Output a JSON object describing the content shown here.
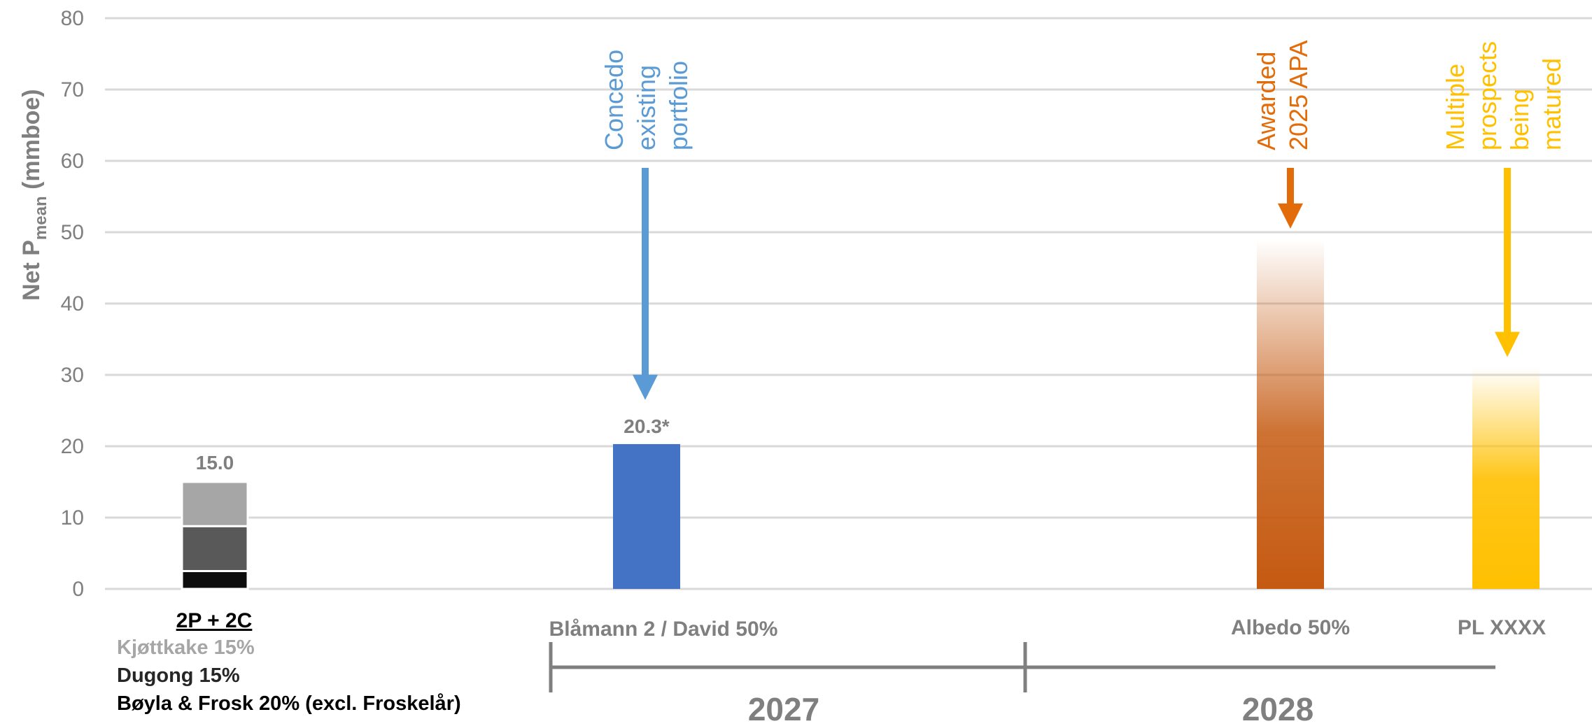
{
  "chart_data": {
    "type": "bar",
    "ylabel_main": "Net P",
    "ylabel_sub": "mean",
    "ylabel_unit": "(mmboe)",
    "ylim": [
      0,
      80
    ],
    "yticks": [
      "0",
      "10",
      "20",
      "30",
      "40",
      "50",
      "60",
      "70",
      "80"
    ],
    "grid": true,
    "categories": [
      "2P + 2C",
      "Blåmann 2 / David 50%",
      "Albedo 50%",
      "PL XXXX"
    ],
    "stack": {
      "label": "15.0",
      "segments": [
        {
          "name": "Bøyla & Frosk 20% (excl. Froskelår)",
          "value": 2.5,
          "color": "#0d0d0d"
        },
        {
          "name": "Dugong 15%",
          "value": 6.3,
          "color": "#595959"
        },
        {
          "name": "Kjøttkake 15%",
          "value": 6.2,
          "color": "#a6a6a6"
        }
      ]
    },
    "bars": [
      {
        "category": "Blåmann 2 / David 50%",
        "value": 20.3,
        "label": "20.3*",
        "color": "#4472c4",
        "style": "solid"
      },
      {
        "category": "Albedo 50%",
        "value": 49,
        "label": "",
        "color": "#c55a11",
        "style": "gradient"
      },
      {
        "category": "PL XXXX",
        "value": 31,
        "label": "",
        "color": "#ffc000",
        "style": "gradient"
      }
    ],
    "annotations": [
      {
        "lines": [
          "Concedo",
          "existing",
          "portfolio"
        ],
        "color": "#5b9bd5",
        "arrow_to": 26.5
      },
      {
        "lines": [
          "Awarded",
          "2025 APA"
        ],
        "color": "#e36c0a",
        "arrow_to": 50.5
      },
      {
        "lines": [
          "Multiple",
          "prospects",
          "being",
          "matured"
        ],
        "color": "#ffc000",
        "arrow_to": 32.5
      }
    ],
    "years": [
      "2027",
      "2028"
    ]
  },
  "colors": {
    "grid": "#d9d9d9",
    "text": "#7f7f7f",
    "timeline": "#7f7f7f"
  }
}
